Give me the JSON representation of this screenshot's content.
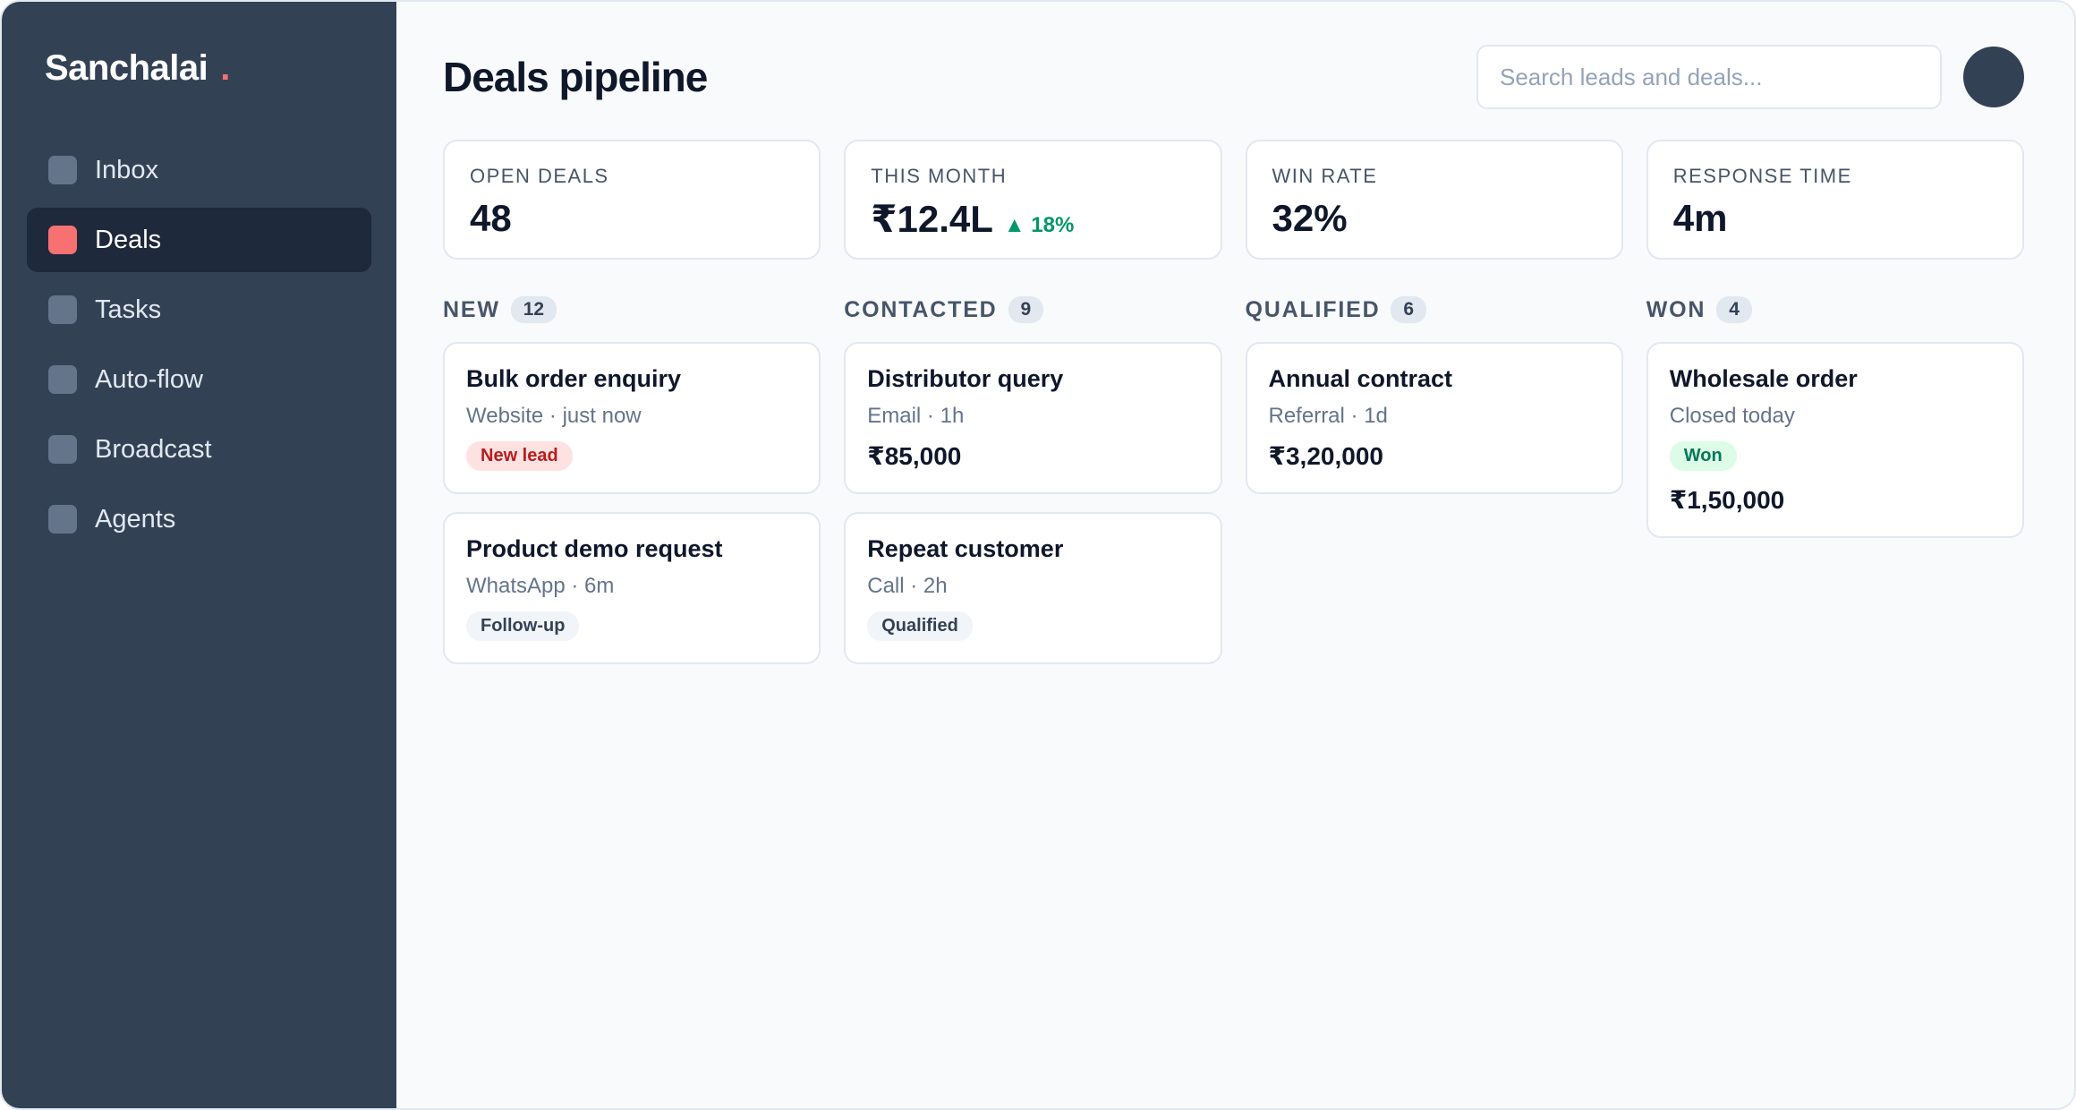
{
  "brand": {
    "name": "Sanchalai",
    "dot": "."
  },
  "sidebar": {
    "items": [
      {
        "label": "Inbox"
      },
      {
        "label": "Deals"
      },
      {
        "label": "Tasks"
      },
      {
        "label": "Auto-flow"
      },
      {
        "label": "Broadcast"
      },
      {
        "label": "Agents"
      }
    ],
    "active": "Deals"
  },
  "header": {
    "title": "Deals pipeline",
    "search_placeholder": "Search leads and deals..."
  },
  "stats": [
    {
      "label": "OPEN DEALS",
      "value": "48"
    },
    {
      "label": "THIS MONTH",
      "value": "₹12.4L",
      "delta": "▲ 18%"
    },
    {
      "label": "WIN RATE",
      "value": "32%"
    },
    {
      "label": "RESPONSE TIME",
      "value": "4m"
    }
  ],
  "pipeline": {
    "columns": [
      {
        "title": "NEW",
        "count": "12",
        "cards": [
          {
            "title": "Bulk order enquiry",
            "sub": "Website · just now",
            "tag": "New lead"
          },
          {
            "title": "Product demo request",
            "sub": "WhatsApp · 6m",
            "tag": "Follow-up"
          }
        ]
      },
      {
        "title": "CONTACTED",
        "count": "9",
        "cards": [
          {
            "title": "Distributor query",
            "sub": "Email · 1h",
            "amount": "₹85,000"
          },
          {
            "title": "Repeat customer",
            "sub": "Call · 2h",
            "tag": "Qualified"
          }
        ]
      },
      {
        "title": "QUALIFIED",
        "count": "6",
        "cards": [
          {
            "title": "Annual contract",
            "sub": "Referral · 1d",
            "amount": "₹3,20,000"
          }
        ]
      },
      {
        "title": "WON",
        "count": "4",
        "cards": [
          {
            "title": "Wholesale order",
            "sub": "Closed today",
            "tag": "Won",
            "amount": "₹1,50,000"
          }
        ]
      }
    ]
  },
  "colors": {
    "sidebar_bg": "#334155",
    "accent": "#f87171",
    "positive": "#059669"
  }
}
